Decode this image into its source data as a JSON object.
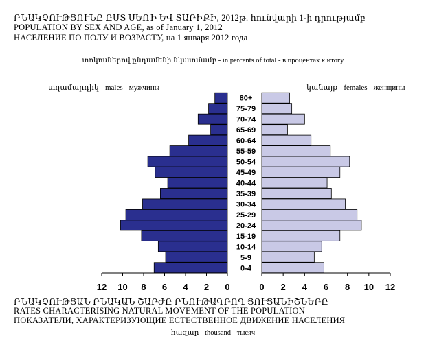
{
  "header": {
    "title_am": "ԲՆԱԿՉՈՒԹՅՈՒՆԸ ԸՍՏ ՍԵՌԻ ԵՎ ՏԱՐԻՔԻ, 2012թ. հունվարի 1-ի դրությամբ",
    "title_en": "POPULATION BY SEX AND AGE, as of January 1, 2012",
    "title_ru": "НАСЕЛЕНИЕ  ПО  ПОЛУ И  ВОЗРАСТУ,  на 1 января 2012 года",
    "units_note": "տոկոսներով ընդամենի նկատմամբ - in percents of total - в процентах к итогу"
  },
  "labels": {
    "males": "տղամարդիկ - males - мужчины",
    "females": "կանայք - females - женщины"
  },
  "footer": {
    "line_am": "ԲՆԱԿՉՈՒԹՅԱՆ ԲՆԱԿԱՆ ՇԱՐԺԸ ԲՆՈՒԹԱԳՐՈՂ ՑՈՒՑԱՆԻՇՆԵՐԸ",
    "line_en": "RATES CHARACTERISING  NATURAL  MOVEMENT  OF  THE  POPULATION",
    "line_ru": "ПОКАЗАТЕЛИ, ХАРАКТЕРИЗУЮЩИЕ  ЕСТЕСТВЕННОЕ  ДВИЖЕНИЕ  НАСЕЛЕНИЯ",
    "unit": "հազար - thousand - тысяч"
  },
  "colors": {
    "males": "#2a2f8f",
    "females": "#c9c9e6",
    "outline": "#000000"
  },
  "chart_data": {
    "type": "bar",
    "orientation": "horizontal-population-pyramid",
    "categories": [
      "0-4",
      "5-9",
      "10-14",
      "15-19",
      "20-24",
      "25-29",
      "30-34",
      "35-39",
      "40-44",
      "45-49",
      "50-54",
      "55-59",
      "60-64",
      "65-69",
      "70-74",
      "75-79",
      "80+"
    ],
    "series": [
      {
        "name": "տղամարդիկ - males - мужчины",
        "side": "left",
        "values": [
          7.0,
          5.9,
          6.6,
          8.2,
          10.2,
          9.7,
          8.1,
          6.4,
          5.7,
          6.9,
          7.6,
          5.5,
          3.7,
          1.6,
          2.8,
          1.8,
          1.2
        ]
      },
      {
        "name": "կանայք - females - женщины",
        "side": "right",
        "values": [
          5.8,
          4.9,
          5.6,
          7.3,
          9.3,
          8.9,
          7.8,
          6.5,
          6.1,
          7.3,
          8.2,
          6.4,
          4.6,
          2.4,
          4.0,
          2.8,
          2.6
        ]
      }
    ],
    "x_ticks_left": [
      "12",
      "10",
      "8",
      "6",
      "4",
      "2",
      "0"
    ],
    "x_ticks_right": [
      "0",
      "2",
      "4",
      "6",
      "8",
      "10",
      "12"
    ],
    "xlim": [
      0,
      12
    ],
    "grid": false
  }
}
